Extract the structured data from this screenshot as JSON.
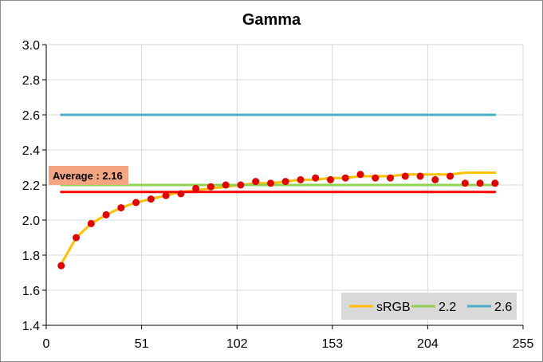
{
  "chart_data": {
    "type": "line",
    "title": "Gamma",
    "xlabel": "",
    "ylabel": "",
    "xlim": [
      0,
      255
    ],
    "ylim": [
      1.4,
      3.0
    ],
    "x_ticks": [
      "0",
      "51",
      "102",
      "153",
      "204",
      "255"
    ],
    "y_ticks": [
      "1.4",
      "1.6",
      "1.8",
      "2.0",
      "2.2",
      "2.4",
      "2.6",
      "2.8",
      "3.0"
    ],
    "grid": true,
    "legend_position": "bottom-right",
    "series": [
      {
        "name": "sRGB",
        "color": "#FFC000",
        "style": "line",
        "x": [
          8,
          16,
          24,
          32,
          40,
          48,
          56,
          64,
          72,
          80,
          88,
          96,
          104,
          112,
          120,
          128,
          136,
          144,
          152,
          160,
          168,
          176,
          184,
          192,
          200,
          208,
          216,
          224,
          232,
          240
        ],
        "y": [
          1.75,
          1.9,
          1.98,
          2.03,
          2.07,
          2.1,
          2.12,
          2.14,
          2.16,
          2.17,
          2.18,
          2.19,
          2.2,
          2.21,
          2.21,
          2.22,
          2.23,
          2.23,
          2.24,
          2.24,
          2.25,
          2.25,
          2.25,
          2.26,
          2.26,
          2.26,
          2.26,
          2.27,
          2.27,
          2.27
        ]
      },
      {
        "name": "2.2",
        "color": "#92D050",
        "style": "line",
        "x": [
          8,
          240
        ],
        "y": [
          2.2,
          2.2
        ]
      },
      {
        "name": "2.6",
        "color": "#4BACC6",
        "style": "line",
        "x": [
          8,
          240
        ],
        "y": [
          2.6,
          2.6
        ]
      },
      {
        "name": "",
        "color": "#FF0000",
        "style": "line",
        "x": [
          8,
          240
        ],
        "y": [
          2.16,
          2.16
        ]
      },
      {
        "name": "",
        "color": "#E00000",
        "style": "markers",
        "x": [
          8,
          16,
          24,
          32,
          40,
          48,
          56,
          64,
          72,
          80,
          88,
          96,
          104,
          112,
          120,
          128,
          136,
          144,
          152,
          160,
          168,
          176,
          184,
          192,
          200,
          208,
          216,
          224,
          232,
          240
        ],
        "y": [
          1.74,
          1.9,
          1.98,
          2.03,
          2.07,
          2.1,
          2.12,
          2.14,
          2.15,
          2.18,
          2.19,
          2.2,
          2.2,
          2.22,
          2.21,
          2.22,
          2.23,
          2.24,
          2.23,
          2.24,
          2.26,
          2.24,
          2.24,
          2.25,
          2.25,
          2.23,
          2.25,
          2.21,
          2.21,
          2.21
        ]
      }
    ],
    "annotations": [
      {
        "text": "Average : 2.16",
        "x": 8,
        "y": 2.2,
        "background": "#F4A582"
      }
    ],
    "legend": [
      "sRGB",
      "2.2",
      "2.6"
    ]
  }
}
